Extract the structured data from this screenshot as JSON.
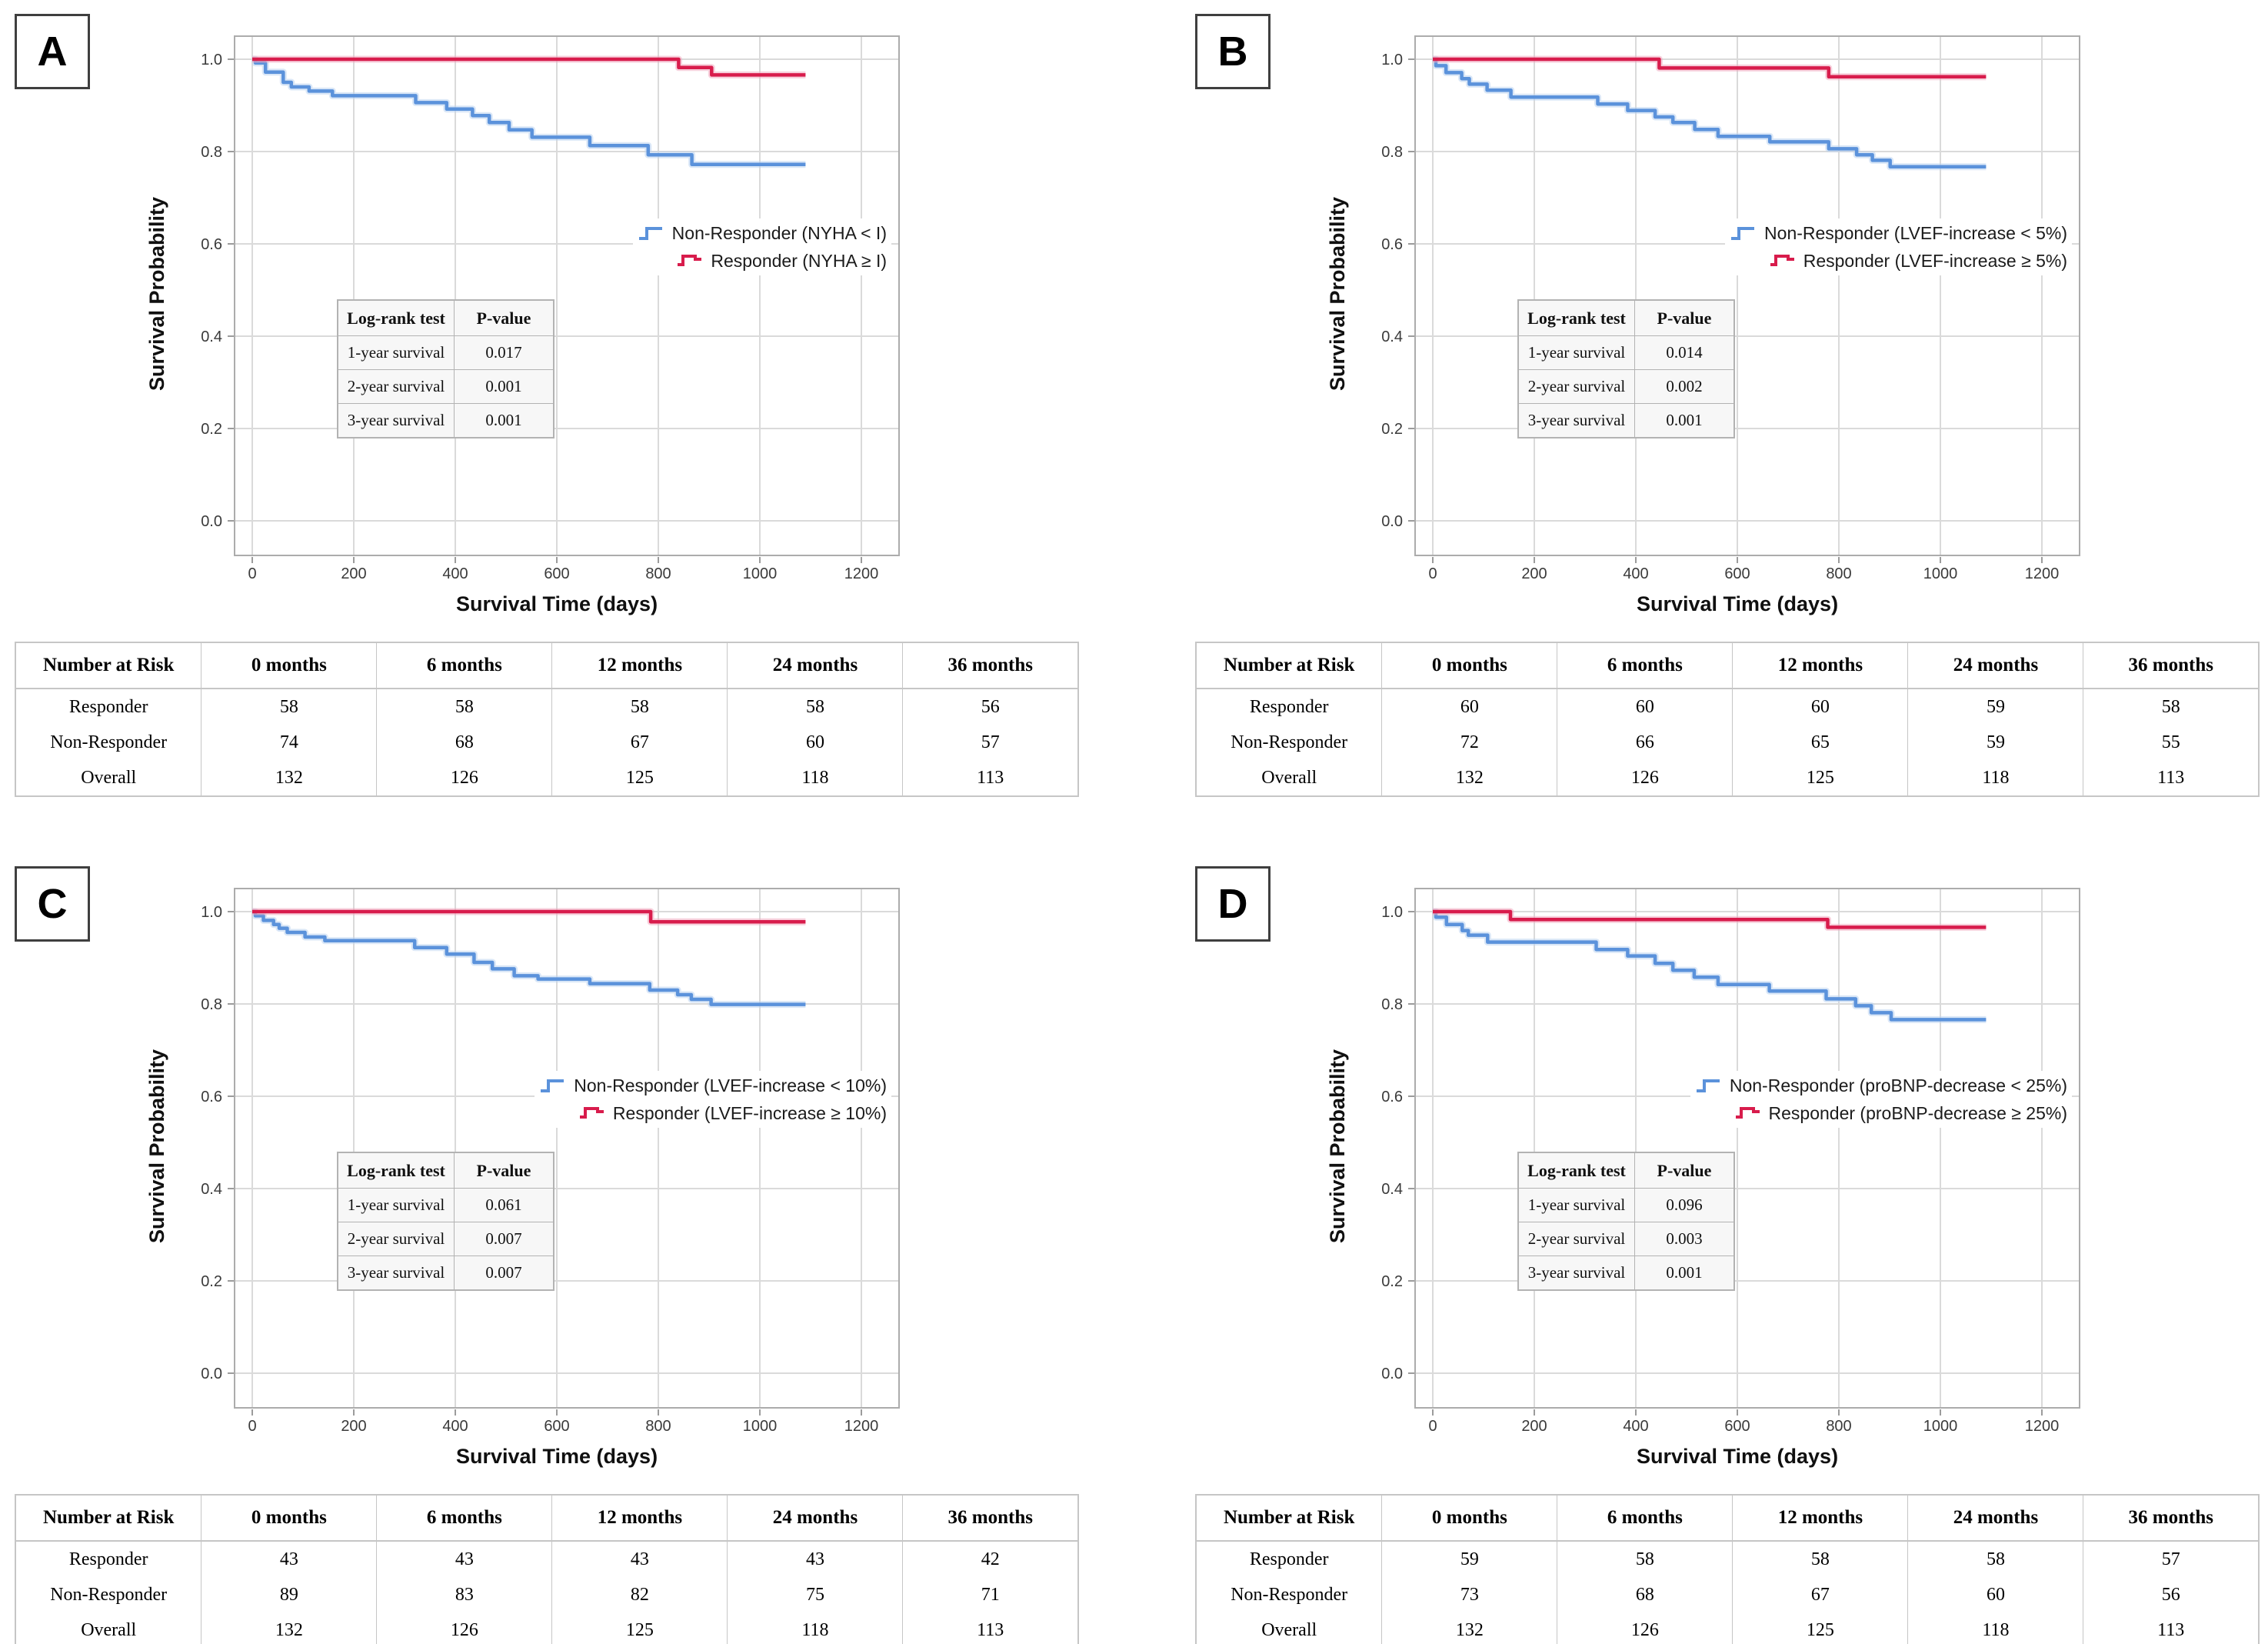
{
  "colors": {
    "non_responder": "#5B92DB",
    "responder": "#D81C4C",
    "non_responder_halo": "#BCD4F1",
    "responder_halo": "#F0A9C0",
    "grid": "#DADADA",
    "frame": "#ACACAC",
    "tick": "#9C9C9C",
    "inset_bg": "#F7F7F7",
    "inset_border": "#B3B3B3",
    "table_border": "#C6C6C6"
  },
  "risk_header": [
    "Number at Risk",
    "0 months",
    "6 months",
    "12 months",
    "24 months",
    "36 months"
  ],
  "panels": [
    {
      "label": "A",
      "logrank": {
        "col1": "Log-rank test",
        "col2": "P-value",
        "rows": [
          [
            "1-year survival",
            "0.017"
          ],
          [
            "2-year survival",
            "0.001"
          ],
          [
            "3-year survival",
            "0.001"
          ]
        ]
      },
      "risk_rows": [
        [
          "Responder",
          58,
          58,
          58,
          58,
          56
        ],
        [
          "Non-Responder",
          74,
          68,
          67,
          60,
          57
        ],
        [
          "Overall",
          132,
          126,
          125,
          118,
          113
        ]
      ],
      "chart_data": {
        "type": "line",
        "step": true,
        "xlabel": "Survival Time (days)",
        "ylabel": "Survival Probability",
        "xlim": [
          0,
          1200
        ],
        "ylim": [
          0.0,
          1.0
        ],
        "x_ticks": [
          0,
          200,
          400,
          600,
          800,
          1000,
          1200
        ],
        "y_ticks": [
          0.0,
          0.2,
          0.4,
          0.6,
          0.8,
          1.0
        ],
        "y_tick_labels": [
          "0.0",
          "0.2",
          "0.4",
          "0.6",
          "0.8",
          "1.0"
        ],
        "grid": true,
        "legend_position": "right-middle",
        "series": [
          {
            "name": "Non-Responder (NYHA < I)",
            "role": "non_responder",
            "color": "#5B92DB",
            "points": [
              [
                0,
                1.0
              ],
              [
                6,
                0.992
              ],
              [
                26,
                0.972
              ],
              [
                61,
                0.95
              ],
              [
                77,
                0.94
              ],
              [
                112,
                0.931
              ],
              [
                158,
                0.921
              ],
              [
                322,
                0.906
              ],
              [
                383,
                0.892
              ],
              [
                434,
                0.878
              ],
              [
                467,
                0.863
              ],
              [
                506,
                0.847
              ],
              [
                551,
                0.831
              ],
              [
                665,
                0.813
              ],
              [
                780,
                0.793
              ],
              [
                866,
                0.772
              ],
              [
                1090,
                0.772
              ]
            ]
          },
          {
            "name": "Responder (NYHA ≥ I)",
            "role": "responder",
            "color": "#D81C4C",
            "points": [
              [
                0,
                1.0
              ],
              [
                840,
                0.982
              ],
              [
                905,
                0.966
              ],
              [
                1090,
                0.966
              ]
            ]
          }
        ]
      }
    },
    {
      "label": "B",
      "logrank": {
        "col1": "Log-rank test",
        "col2": "P-value",
        "rows": [
          [
            "1-year survival",
            "0.014"
          ],
          [
            "2-year survival",
            "0.002"
          ],
          [
            "3-year survival",
            "0.001"
          ]
        ]
      },
      "risk_rows": [
        [
          "Responder",
          60,
          60,
          60,
          59,
          58
        ],
        [
          "Non-Responder",
          72,
          66,
          65,
          59,
          55
        ],
        [
          "Overall",
          132,
          126,
          125,
          118,
          113
        ]
      ],
      "chart_data": {
        "type": "line",
        "step": true,
        "xlabel": "Survival Time (days)",
        "ylabel": "Survival Probability",
        "xlim": [
          0,
          1200
        ],
        "ylim": [
          0.0,
          1.0
        ],
        "x_ticks": [
          0,
          200,
          400,
          600,
          800,
          1000,
          1200
        ],
        "y_ticks": [
          0.0,
          0.2,
          0.4,
          0.6,
          0.8,
          1.0
        ],
        "y_tick_labels": [
          "0.0",
          "0.2",
          "0.4",
          "0.6",
          "0.8",
          "1.0"
        ],
        "grid": true,
        "legend_position": "right-middle",
        "series": [
          {
            "name": "Non-Responder (LVEF-increase < 5%)",
            "role": "non_responder",
            "color": "#5B92DB",
            "points": [
              [
                0,
                1.0
              ],
              [
                6,
                0.986
              ],
              [
                26,
                0.971
              ],
              [
                57,
                0.958
              ],
              [
                72,
                0.946
              ],
              [
                107,
                0.933
              ],
              [
                154,
                0.918
              ],
              [
                325,
                0.903
              ],
              [
                384,
                0.889
              ],
              [
                438,
                0.875
              ],
              [
                473,
                0.863
              ],
              [
                516,
                0.848
              ],
              [
                562,
                0.833
              ],
              [
                664,
                0.821
              ],
              [
                780,
                0.806
              ],
              [
                835,
                0.793
              ],
              [
                866,
                0.781
              ],
              [
                901,
                0.767
              ],
              [
                1090,
                0.767
              ]
            ]
          },
          {
            "name": "Responder (LVEF-increase ≥ 5%)",
            "role": "responder",
            "color": "#D81C4C",
            "points": [
              [
                0,
                1.0
              ],
              [
                446,
                0.981
              ],
              [
                780,
                0.962
              ],
              [
                1090,
                0.962
              ]
            ]
          }
        ]
      }
    },
    {
      "label": "C",
      "logrank": {
        "col1": "Log-rank test",
        "col2": "P-value",
        "rows": [
          [
            "1-year survival",
            "0.061"
          ],
          [
            "2-year survival",
            "0.007"
          ],
          [
            "3-year survival",
            "0.007"
          ]
        ]
      },
      "risk_rows": [
        [
          "Responder",
          43,
          43,
          43,
          43,
          42
        ],
        [
          "Non-Responder",
          89,
          83,
          82,
          75,
          71
        ],
        [
          "Overall",
          132,
          126,
          125,
          118,
          113
        ]
      ],
      "chart_data": {
        "type": "line",
        "step": true,
        "xlabel": "Survival Time (days)",
        "ylabel": "Survival Probability",
        "xlim": [
          0,
          1200
        ],
        "ylim": [
          0.0,
          1.0
        ],
        "x_ticks": [
          0,
          200,
          400,
          600,
          800,
          1000,
          1200
        ],
        "y_ticks": [
          0.0,
          0.2,
          0.4,
          0.6,
          0.8,
          1.0
        ],
        "y_tick_labels": [
          "0.0",
          "0.2",
          "0.4",
          "0.6",
          "0.8",
          "1.0"
        ],
        "grid": true,
        "legend_position": "right-middle",
        "series": [
          {
            "name": "Non-Responder (LVEF-increase < 10%)",
            "role": "non_responder",
            "color": "#5B92DB",
            "points": [
              [
                0,
                1.0
              ],
              [
                6,
                0.991
              ],
              [
                22,
                0.981
              ],
              [
                42,
                0.972
              ],
              [
                53,
                0.964
              ],
              [
                69,
                0.955
              ],
              [
                104,
                0.945
              ],
              [
                143,
                0.937
              ],
              [
                320,
                0.922
              ],
              [
                383,
                0.908
              ],
              [
                437,
                0.89
              ],
              [
                473,
                0.876
              ],
              [
                516,
                0.861
              ],
              [
                563,
                0.854
              ],
              [
                665,
                0.844
              ],
              [
                783,
                0.83
              ],
              [
                838,
                0.82
              ],
              [
                865,
                0.81
              ],
              [
                904,
                0.799
              ],
              [
                1090,
                0.799
              ]
            ]
          },
          {
            "name": "Responder (LVEF-increase ≥ 10%)",
            "role": "responder",
            "color": "#D81C4C",
            "points": [
              [
                0,
                1.0
              ],
              [
                785,
                0.978
              ],
              [
                1090,
                0.978
              ]
            ]
          }
        ]
      }
    },
    {
      "label": "D",
      "logrank": {
        "col1": "Log-rank test",
        "col2": "P-value",
        "rows": [
          [
            "1-year survival",
            "0.096"
          ],
          [
            "2-year survival",
            "0.003"
          ],
          [
            "3-year survival",
            "0.001"
          ]
        ]
      },
      "risk_rows": [
        [
          "Responder",
          59,
          58,
          58,
          58,
          57
        ],
        [
          "Non-Responder",
          73,
          68,
          67,
          60,
          56
        ],
        [
          "Overall",
          132,
          126,
          125,
          118,
          113
        ]
      ],
      "chart_data": {
        "type": "line",
        "step": true,
        "xlabel": "Survival Time (days)",
        "ylabel": "Survival Probability",
        "xlim": [
          0,
          1200
        ],
        "ylim": [
          0.0,
          1.0
        ],
        "x_ticks": [
          0,
          200,
          400,
          600,
          800,
          1000,
          1200
        ],
        "y_ticks": [
          0.0,
          0.2,
          0.4,
          0.6,
          0.8,
          1.0
        ],
        "y_tick_labels": [
          "0.0",
          "0.2",
          "0.4",
          "0.6",
          "0.8",
          "1.0"
        ],
        "grid": true,
        "legend_position": "right-middle",
        "series": [
          {
            "name": "Non-Responder (proBNP-decrease < 25%)",
            "role": "non_responder",
            "color": "#5B92DB",
            "points": [
              [
                0,
                1.0
              ],
              [
                6,
                0.988
              ],
              [
                27,
                0.972
              ],
              [
                58,
                0.959
              ],
              [
                70,
                0.949
              ],
              [
                108,
                0.934
              ],
              [
                322,
                0.918
              ],
              [
                384,
                0.904
              ],
              [
                438,
                0.888
              ],
              [
                473,
                0.873
              ],
              [
                515,
                0.858
              ],
              [
                562,
                0.842
              ],
              [
                663,
                0.828
              ],
              [
                775,
                0.811
              ],
              [
                833,
                0.796
              ],
              [
                864,
                0.781
              ],
              [
                903,
                0.766
              ],
              [
                1090,
                0.766
              ]
            ]
          },
          {
            "name": "Responder (proBNP-decrease ≥ 25%)",
            "role": "responder",
            "color": "#D81C4C",
            "points": [
              [
                0,
                1.0
              ],
              [
                153,
                0.983
              ],
              [
                778,
                0.966
              ],
              [
                1090,
                0.966
              ]
            ]
          }
        ]
      }
    }
  ]
}
